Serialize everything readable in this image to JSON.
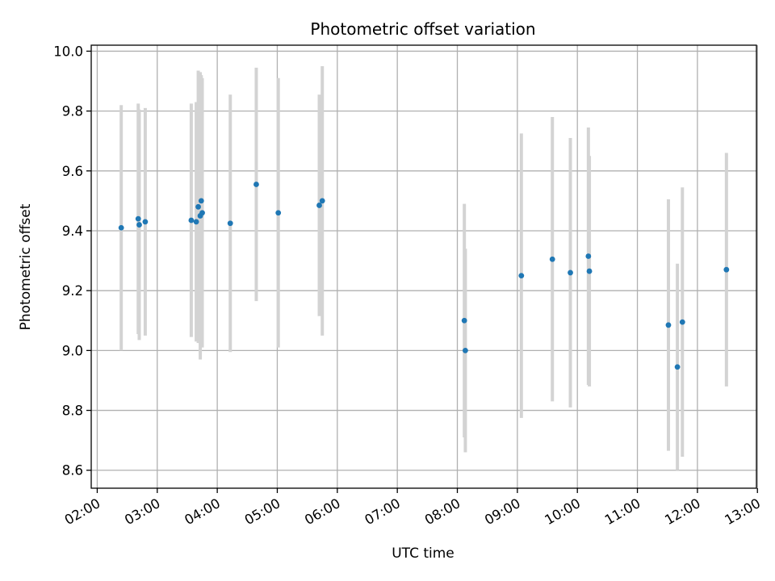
{
  "chart_data": {
    "type": "scatter",
    "title": "Photometric offset variation",
    "xlabel": "UTC time",
    "ylabel": "Photometric offset",
    "x_ticks": [
      "02:00",
      "03:00",
      "04:00",
      "05:00",
      "06:00",
      "07:00",
      "08:00",
      "09:00",
      "10:00",
      "11:00",
      "12:00",
      "13:00"
    ],
    "y_ticks": [
      "8.6",
      "8.8",
      "9.0",
      "9.2",
      "9.4",
      "9.6",
      "9.8",
      "10.0"
    ],
    "xlim": [
      "01:54",
      "12:59"
    ],
    "ylim": [
      8.54,
      10.02
    ],
    "grid": true,
    "colors": {
      "points": "#1f77b4",
      "error_bars": "#d3d3d3",
      "grid": "#b0b0b0"
    },
    "points": [
      {
        "x": "02:24",
        "y": 9.41,
        "err": 0.41
      },
      {
        "x": "02:41",
        "y": 9.44,
        "err": 0.385
      },
      {
        "x": "02:42",
        "y": 9.42,
        "err": 0.385
      },
      {
        "x": "02:48",
        "y": 9.43,
        "err": 0.38
      },
      {
        "x": "03:34",
        "y": 9.435,
        "err": 0.39
      },
      {
        "x": "03:39",
        "y": 9.43,
        "err": 0.4
      },
      {
        "x": "03:41",
        "y": 9.48,
        "err": 0.455
      },
      {
        "x": "03:43",
        "y": 9.45,
        "err": 0.48
      },
      {
        "x": "03:44",
        "y": 9.5,
        "err": 0.42
      },
      {
        "x": "03:45",
        "y": 9.46,
        "err": 0.45
      },
      {
        "x": "04:13",
        "y": 9.425,
        "err": 0.43
      },
      {
        "x": "04:39",
        "y": 9.555,
        "err": 0.39
      },
      {
        "x": "05:01",
        "y": 9.46,
        "err": 0.45
      },
      {
        "x": "05:42",
        "y": 9.485,
        "err": 0.37
      },
      {
        "x": "05:45",
        "y": 9.5,
        "err": 0.45
      },
      {
        "x": "08:07",
        "y": 9.1,
        "err": 0.39
      },
      {
        "x": "08:08",
        "y": 9.0,
        "err": 0.34
      },
      {
        "x": "09:04",
        "y": 9.25,
        "err": 0.475
      },
      {
        "x": "09:35",
        "y": 9.305,
        "err": 0.475
      },
      {
        "x": "09:53",
        "y": 9.26,
        "err": 0.45
      },
      {
        "x": "10:11",
        "y": 9.315,
        "err": 0.43
      },
      {
        "x": "10:12",
        "y": 9.265,
        "err": 0.385
      },
      {
        "x": "11:31",
        "y": 9.085,
        "err": 0.42
      },
      {
        "x": "11:40",
        "y": 8.945,
        "err": 0.345
      },
      {
        "x": "11:45",
        "y": 9.095,
        "err": 0.45
      },
      {
        "x": "12:29",
        "y": 9.27,
        "err": 0.39
      }
    ]
  }
}
